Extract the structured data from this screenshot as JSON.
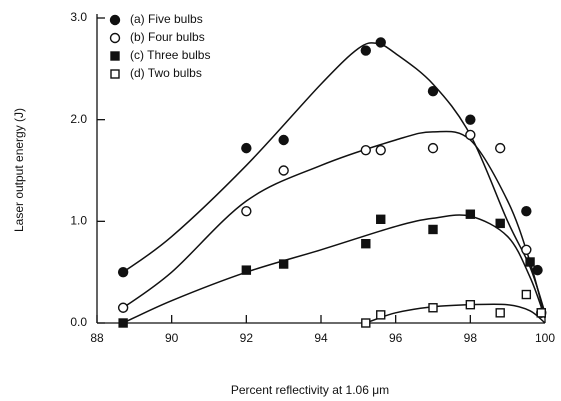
{
  "chart_data": {
    "type": "scatter",
    "x_label": "Percent reflectivity at 1.06 μm",
    "y_label": "Laser output energy (J)",
    "xlim": [
      88,
      100
    ],
    "xticks": [
      88,
      90,
      92,
      94,
      96,
      98,
      100
    ],
    "ylim": [
      0,
      3
    ],
    "yticks": [
      {
        "value": 0,
        "label": "0.0"
      },
      {
        "value": 1,
        "label": "1.0"
      },
      {
        "value": 2,
        "label": "2.0"
      },
      {
        "value": 3,
        "label": "3.0"
      }
    ],
    "legend": "upper-left",
    "series": [
      {
        "name": "(a)  Five bulbs",
        "color": "#111111",
        "marker": "filled-circle",
        "x": [
          88.7,
          92,
          93,
          95.2,
          95.6,
          97,
          98,
          99.5,
          99.8
        ],
        "values": [
          0.5,
          1.72,
          1.8,
          2.68,
          2.76,
          2.28,
          2.0,
          1.1,
          0.52
        ],
        "fit_x": [
          88.7,
          90,
          92,
          94,
          95,
          95.5,
          96,
          97,
          98,
          99,
          99.6,
          100
        ],
        "fit_y": [
          0.5,
          0.85,
          1.55,
          2.35,
          2.7,
          2.75,
          2.65,
          2.35,
          1.85,
          1.0,
          0.55,
          0.1
        ]
      },
      {
        "name": "(b)  Four bulbs",
        "color": "#111111",
        "marker": "open-circle",
        "x": [
          88.7,
          92,
          93,
          95.2,
          95.6,
          97,
          98,
          98.8,
          99.5,
          99.9
        ],
        "values": [
          0.15,
          1.1,
          1.5,
          1.7,
          1.7,
          1.72,
          1.85,
          1.72,
          0.72,
          0.1
        ],
        "fit_x": [
          88.7,
          90,
          92,
          94,
          96,
          97,
          98,
          99,
          99.6,
          100
        ],
        "fit_y": [
          0.15,
          0.5,
          1.2,
          1.55,
          1.8,
          1.88,
          1.8,
          1.2,
          0.6,
          0.05
        ]
      },
      {
        "name": "(c)  Three bulbs",
        "color": "#111111",
        "marker": "filled-square",
        "x": [
          88.7,
          92,
          93,
          95.2,
          95.6,
          97,
          98,
          98.8,
          99.6,
          99.9
        ],
        "values": [
          0.0,
          0.52,
          0.58,
          0.78,
          1.02,
          0.92,
          1.07,
          0.98,
          0.6,
          0.1
        ],
        "fit_x": [
          88.7,
          90,
          92,
          94,
          96,
          97,
          98,
          99,
          99.6,
          100
        ],
        "fit_y": [
          0.0,
          0.22,
          0.5,
          0.72,
          0.95,
          1.03,
          1.05,
          0.85,
          0.45,
          0.05
        ]
      },
      {
        "name": "(d)  Two bulbs",
        "color": "#111111",
        "marker": "open-square",
        "x": [
          95.2,
          95.6,
          97,
          98,
          98.8,
          99.5,
          99.9
        ],
        "values": [
          0.0,
          0.08,
          0.15,
          0.18,
          0.1,
          0.28,
          0.1
        ],
        "fit_x": [
          95.2,
          96,
          97,
          98,
          99,
          99.6,
          100
        ],
        "fit_y": [
          0.0,
          0.1,
          0.16,
          0.18,
          0.18,
          0.12,
          0.0
        ]
      }
    ]
  }
}
